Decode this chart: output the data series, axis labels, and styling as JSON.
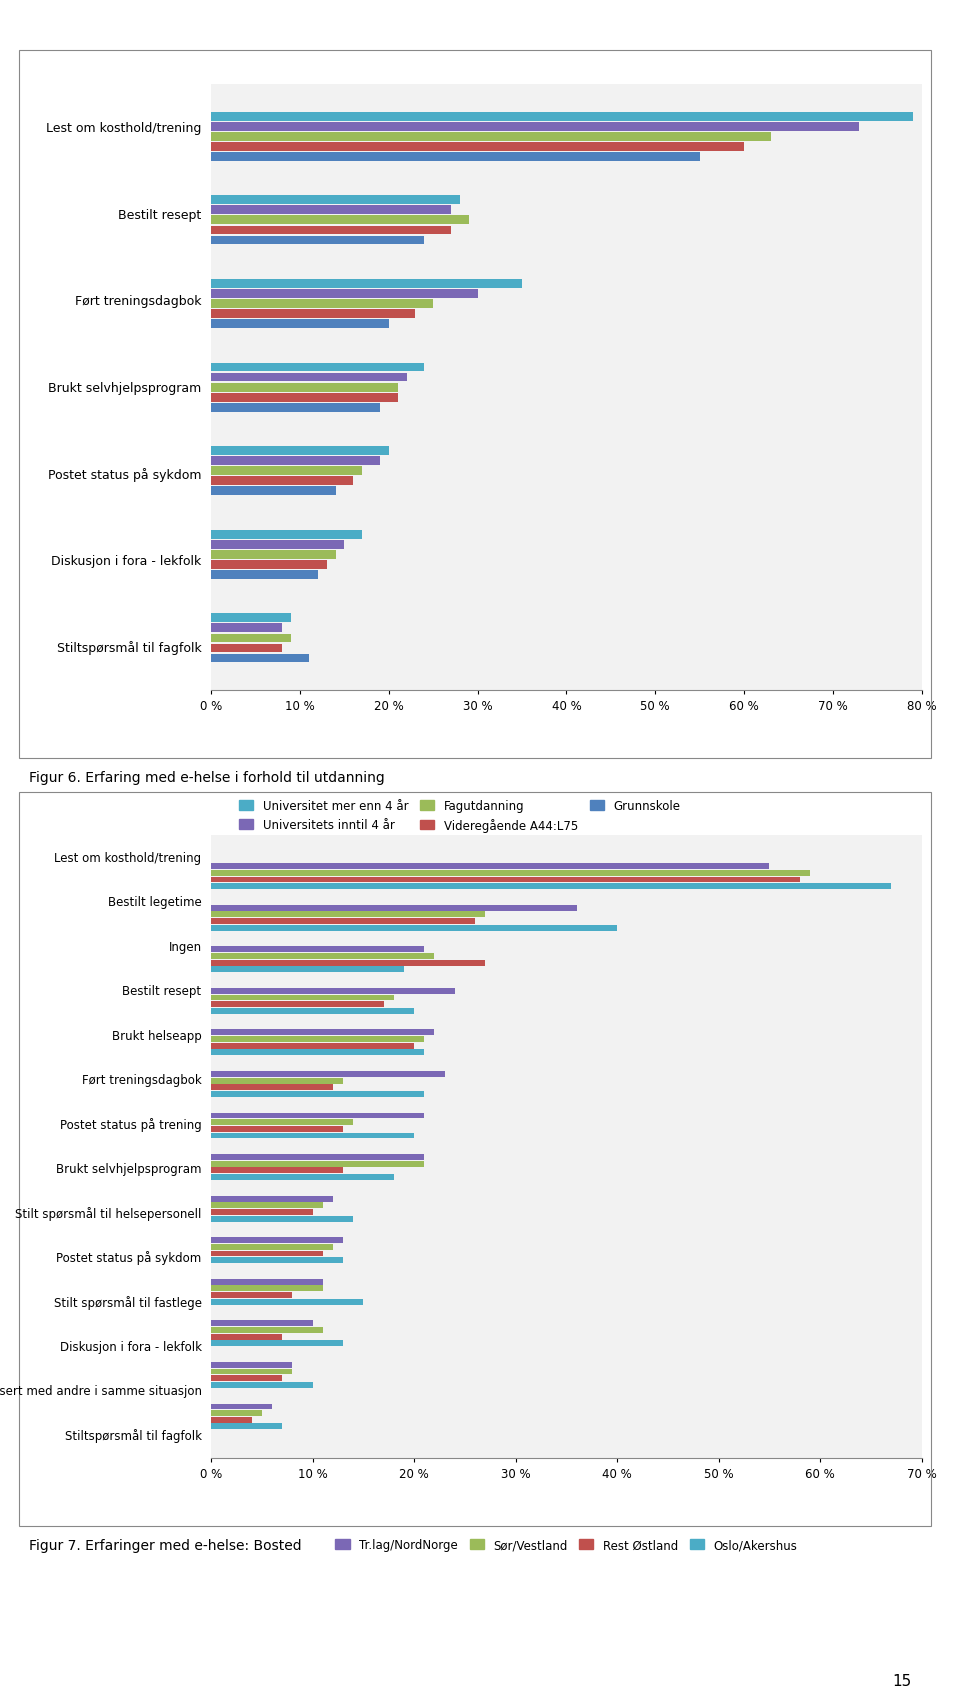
{
  "chart1": {
    "categories": [
      "Lest om kosthold/trening",
      "Bestilt resept",
      "Ført treningsdagbok",
      "Brukt selvhjelpsprogram",
      "Postet status på sykdom",
      "Diskusjon i fora - lekfolk",
      "Stiltspørsmål til fagfolk"
    ],
    "series": [
      {
        "label": "Universitet mer enn 4 år",
        "color": "#4BACC6",
        "values": [
          79,
          28,
          35,
          24,
          20,
          17,
          9
        ]
      },
      {
        "label": "Universitets inntil 4 år",
        "color": "#7B68B5",
        "values": [
          73,
          27,
          30,
          22,
          19,
          15,
          8
        ]
      },
      {
        "label": "Fagutdanning",
        "color": "#9BBB59",
        "values": [
          63,
          29,
          25,
          21,
          17,
          14,
          9
        ]
      },
      {
        "label": "Videregående A44:L75",
        "color": "#C0504D",
        "values": [
          60,
          27,
          23,
          21,
          16,
          13,
          8
        ]
      },
      {
        "label": "Grunnskole",
        "color": "#4F81BD",
        "values": [
          55,
          24,
          20,
          19,
          14,
          12,
          11
        ]
      }
    ],
    "xlim": [
      0,
      80
    ],
    "xticks": [
      0,
      10,
      20,
      30,
      40,
      50,
      60,
      70,
      80
    ],
    "xticklabels": [
      "0 %",
      "10 %",
      "20 %",
      "30 %",
      "40 %",
      "50 %",
      "60 %",
      "70 %",
      "80 %"
    ]
  },
  "chart2": {
    "categories": [
      "Lest om kosthold/trening",
      "Bestilt legetime",
      "Ingen",
      "Bestilt resept",
      "Brukt helseapp",
      "Ført treningsdagbok",
      "Postet status på trening",
      "Brukt selvhjelpsprogram",
      "Stilt spørsmål til helsepersonell",
      "Postet status på sykdom",
      "Stilt spørsmål til fastlege",
      "Diskusjon i fora - lekfolk",
      "Kommunisert med andre i samme situasjon",
      "Stiltspørsmål til fagfolk"
    ],
    "series": [
      {
        "label": "Tr.lag/NordNorge",
        "color": "#7B68B5",
        "values": [
          55,
          36,
          21,
          24,
          22,
          23,
          21,
          21,
          12,
          13,
          11,
          10,
          8,
          6
        ]
      },
      {
        "label": "Sør/Vestland",
        "color": "#9BBB59",
        "values": [
          59,
          27,
          22,
          18,
          21,
          13,
          14,
          21,
          11,
          12,
          11,
          11,
          8,
          5
        ]
      },
      {
        "label": "Rest Østland",
        "color": "#C0504D",
        "values": [
          58,
          26,
          27,
          17,
          20,
          12,
          13,
          13,
          10,
          11,
          8,
          7,
          7,
          4
        ]
      },
      {
        "label": "Oslo/Akershus",
        "color": "#4BACC6",
        "values": [
          67,
          40,
          19,
          20,
          21,
          21,
          20,
          18,
          14,
          13,
          15,
          13,
          10,
          7
        ]
      }
    ],
    "xlim": [
      0,
      70
    ],
    "xticks": [
      0,
      10,
      20,
      30,
      40,
      50,
      60,
      70
    ],
    "xticklabels": [
      "0 %",
      "10 %",
      "20 %",
      "30 %",
      "40 %",
      "50 %",
      "60 %",
      "70 %"
    ]
  },
  "fig6_caption": "Figur 6. Erfaring med e-helse i forhold til utdanning",
  "fig7_caption": "Figur 7. Erfaringer med e-helse: Bosted",
  "page_number": "15",
  "bg_color": "#FFFFFF",
  "box_bg": "#F2F2F2"
}
